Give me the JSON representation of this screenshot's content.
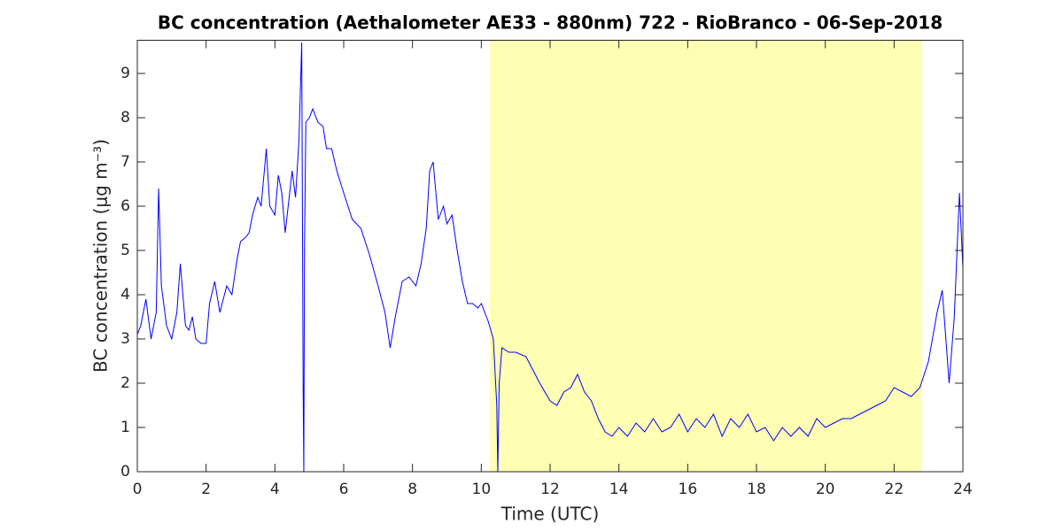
{
  "chart_data": {
    "type": "line",
    "title": "BC concentration (Aethalometer AE33 - 880nm) 722 - RioBranco - 06-Sep-2018",
    "xlabel": "Time (UTC)",
    "ylabel": "BC concentration (μg m⁻³)",
    "shaded_region": [
      10.25,
      22.8
    ],
    "shade_color": "#ffffb4",
    "xlim": [
      0,
      24
    ],
    "xticks": [
      0,
      2,
      4,
      6,
      8,
      10,
      12,
      14,
      16,
      18,
      20,
      22,
      24
    ],
    "ylim": [
      0,
      9.75
    ],
    "yticks": [
      0,
      1,
      2,
      3,
      4,
      5,
      6,
      7,
      8,
      9
    ],
    "series": [
      {
        "color": "#0000ff",
        "x": [
          0,
          0.1,
          0.25,
          0.4,
          0.55,
          0.62,
          0.7,
          0.85,
          1.0,
          1.15,
          1.25,
          1.4,
          1.5,
          1.6,
          1.7,
          1.85,
          2.0,
          2.1,
          2.25,
          2.4,
          2.5,
          2.6,
          2.75,
          2.9,
          3.0,
          3.15,
          3.25,
          3.35,
          3.5,
          3.6,
          3.75,
          3.85,
          4.0,
          4.1,
          4.2,
          4.3,
          4.4,
          4.5,
          4.6,
          4.7,
          4.78,
          4.82,
          4.84,
          4.86,
          4.9,
          5.0,
          5.1,
          5.25,
          5.4,
          5.5,
          5.65,
          5.8,
          6.0,
          6.25,
          6.5,
          6.75,
          7.0,
          7.2,
          7.35,
          7.5,
          7.7,
          7.9,
          8.1,
          8.25,
          8.4,
          8.5,
          8.6,
          8.75,
          8.9,
          9.0,
          9.15,
          9.3,
          9.45,
          9.6,
          9.75,
          9.9,
          10.0,
          10.2,
          10.35,
          10.45,
          10.48,
          10.52,
          10.6,
          10.8,
          11.0,
          11.3,
          11.5,
          11.7,
          12.0,
          12.2,
          12.4,
          12.6,
          12.8,
          13.0,
          13.2,
          13.4,
          13.6,
          13.8,
          14.0,
          14.25,
          14.5,
          14.75,
          15.0,
          15.25,
          15.5,
          15.75,
          16.0,
          16.25,
          16.5,
          16.75,
          17.0,
          17.25,
          17.5,
          17.75,
          18.0,
          18.25,
          18.5,
          18.75,
          19.0,
          19.25,
          19.5,
          19.75,
          20.0,
          20.25,
          20.5,
          20.75,
          21.0,
          21.25,
          21.5,
          21.75,
          22.0,
          22.25,
          22.5,
          22.75,
          23.0,
          23.25,
          23.4,
          23.6,
          23.75,
          23.9,
          24
        ],
        "values": [
          3.1,
          3.3,
          3.9,
          3.0,
          3.6,
          6.4,
          4.2,
          3.3,
          3.0,
          3.6,
          4.7,
          3.3,
          3.2,
          3.5,
          3.0,
          2.9,
          2.9,
          3.8,
          4.3,
          3.6,
          3.9,
          4.2,
          4.0,
          4.8,
          5.2,
          5.3,
          5.4,
          5.8,
          6.2,
          6.0,
          7.3,
          6.0,
          5.8,
          6.7,
          6.3,
          5.4,
          6.1,
          6.8,
          6.2,
          7.5,
          9.7,
          2.0,
          0,
          5,
          7.9,
          8.0,
          8.2,
          7.9,
          7.8,
          7.3,
          7.3,
          6.8,
          6.3,
          5.7,
          5.5,
          4.9,
          4.2,
          3.6,
          2.8,
          3.5,
          4.3,
          4.4,
          4.2,
          4.7,
          5.5,
          6.8,
          7.0,
          5.7,
          6.0,
          5.6,
          5.8,
          5.0,
          4.3,
          3.8,
          3.8,
          3.7,
          3.8,
          3.4,
          3.0,
          1.5,
          0,
          2.0,
          2.8,
          2.7,
          2.7,
          2.6,
          2.3,
          2.0,
          1.6,
          1.5,
          1.8,
          1.9,
          2.2,
          1.8,
          1.6,
          1.2,
          0.9,
          0.8,
          1.0,
          0.8,
          1.1,
          0.9,
          1.2,
          0.9,
          1.0,
          1.3,
          0.9,
          1.2,
          1.0,
          1.3,
          0.8,
          1.2,
          1.0,
          1.3,
          0.9,
          1.0,
          0.7,
          1.0,
          0.8,
          1.0,
          0.8,
          1.2,
          1.0,
          1.1,
          1.2,
          1.2,
          1.3,
          1.4,
          1.5,
          1.6,
          1.9,
          1.8,
          1.7,
          1.9,
          2.5,
          3.6,
          4.1,
          2.0,
          3.5,
          6.3,
          4.6
        ]
      }
    ]
  }
}
